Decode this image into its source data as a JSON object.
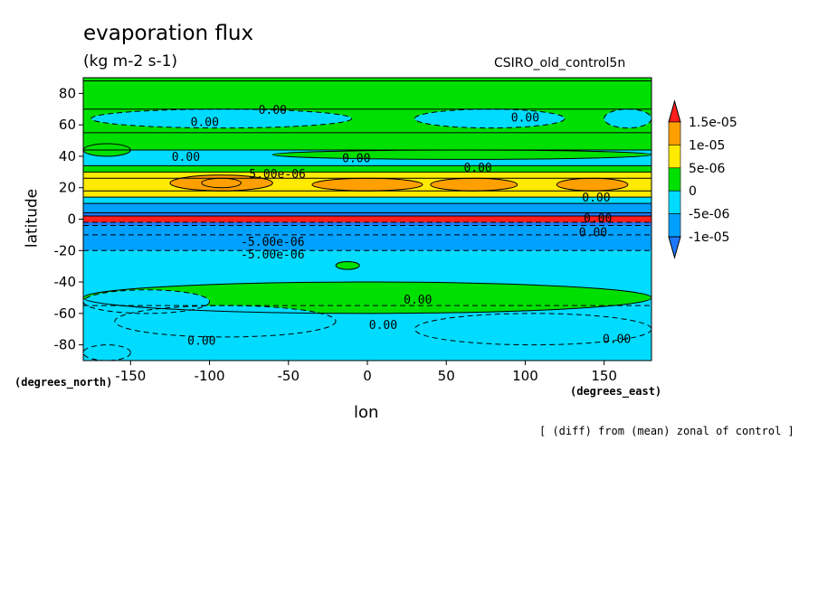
{
  "chart_data": {
    "type": "heatmap",
    "title": "evaporation flux",
    "units": "(kg m-2 s-1)",
    "run_name": "CSIRO_old_control5n",
    "xlabel": "lon",
    "ylabel": "latitude",
    "x_units": "(degrees_east)",
    "y_units": "(degrees_north)",
    "footnote": "[ (diff) from (mean) zonal of control ]",
    "xlim": [
      -180,
      180
    ],
    "ylim": [
      -90,
      90
    ],
    "x_ticks": [
      -150,
      -100,
      -50,
      0,
      50,
      100,
      150
    ],
    "y_ticks": [
      80,
      60,
      40,
      20,
      0,
      -20,
      -40,
      -60,
      -80
    ],
    "x_tick_labels": [
      "-150",
      "-100",
      "-50",
      "0",
      "50",
      "100",
      "150"
    ],
    "y_tick_labels": [
      "80",
      "60",
      "40",
      "20",
      "0",
      "-20",
      "-40",
      "-60",
      "-80"
    ],
    "colorbar": {
      "levels": [
        -1e-05,
        -5e-06,
        0,
        5e-06,
        1e-05,
        1.5e-05
      ],
      "tick_labels": [
        "-1e-05",
        "-5e-06",
        "0",
        "5e-06",
        "1e-05",
        "1.5e-05"
      ],
      "colors": [
        "#1e78ff",
        "#00a0ff",
        "#00dcff",
        "#00e000",
        "#ffea00",
        "#ffa000",
        "#ff1e1e"
      ]
    },
    "zonal_bands": [
      {
        "lat": [
          88,
          90
        ],
        "value": 2e-06
      },
      {
        "lat": [
          70,
          88
        ],
        "value": 2e-06
      },
      {
        "lat": [
          55,
          70
        ],
        "value": 2e-06
      },
      {
        "lat": [
          44,
          55
        ],
        "value": 2e-06
      },
      {
        "lat": [
          34,
          44
        ],
        "value": -2e-06
      },
      {
        "lat": [
          30,
          34
        ],
        "value": 2e-06
      },
      {
        "lat": [
          26,
          30
        ],
        "value": 7e-06
      },
      {
        "lat": [
          18,
          26
        ],
        "value": 9e-06
      },
      {
        "lat": [
          14,
          18
        ],
        "value": 6e-06
      },
      {
        "lat": [
          10,
          14
        ],
        "value": -2e-06
      },
      {
        "lat": [
          4,
          10
        ],
        "value": -8e-06
      },
      {
        "lat": [
          2,
          4
        ],
        "value": -1.2e-05
      },
      {
        "lat": [
          -2,
          2
        ],
        "value": 1.6e-05
      },
      {
        "lat": [
          -4,
          -2
        ],
        "value": -1.2e-05
      },
      {
        "lat": [
          -10,
          -4
        ],
        "value": -8e-06
      },
      {
        "lat": [
          -20,
          -10
        ],
        "value": -7e-06
      },
      {
        "lat": [
          -55,
          -20
        ],
        "value": -2e-06
      },
      {
        "lat": [
          -90,
          -55
        ],
        "value": -2e-06
      }
    ],
    "anomalies": [
      {
        "lon": [
          -105,
          -80
        ],
        "lat": [
          20,
          26
        ],
        "value": 1.6e-05
      },
      {
        "lon": [
          -125,
          -60
        ],
        "lat": [
          18,
          28
        ],
        "value": 1.2e-05
      },
      {
        "lon": [
          40,
          95
        ],
        "lat": [
          18,
          26
        ],
        "value": 1.2e-05
      },
      {
        "lon": [
          120,
          165
        ],
        "lat": [
          18,
          26
        ],
        "value": 1.2e-05
      },
      {
        "lon": [
          -35,
          35
        ],
        "lat": [
          18,
          26
        ],
        "value": 1.2e-05
      },
      {
        "lon": [
          -180,
          180
        ],
        "lat": [
          -60,
          -40
        ],
        "value": 2e-06
      },
      {
        "lon": [
          -160,
          -20
        ],
        "lat": [
          -75,
          -55
        ],
        "value": -2e-06
      },
      {
        "lon": [
          -180,
          -100
        ],
        "lat": [
          -60,
          -45
        ],
        "value": -2e-06
      },
      {
        "lon": [
          30,
          180
        ],
        "lat": [
          -80,
          -60
        ],
        "value": -2e-06
      },
      {
        "lon": [
          -180,
          -150
        ],
        "lat": [
          -90,
          -80
        ],
        "value": -2e-06
      },
      {
        "lon": [
          -180,
          -150
        ],
        "lat": [
          40,
          48
        ],
        "value": 2e-06
      },
      {
        "lon": [
          -60,
          180
        ],
        "lat": [
          38,
          44
        ],
        "value": 2e-06
      },
      {
        "lon": [
          -175,
          -10
        ],
        "lat": [
          58,
          70
        ],
        "value": -2e-06
      },
      {
        "lon": [
          30,
          125
        ],
        "lat": [
          58,
          70
        ],
        "value": -2e-06
      },
      {
        "lon": [
          150,
          180
        ],
        "lat": [
          58,
          70
        ],
        "value": -2e-06
      },
      {
        "lon": [
          -20,
          -5
        ],
        "lat": [
          -32,
          -27
        ],
        "value": 2e-06
      }
    ],
    "contour_labels": [
      {
        "text": "0.00",
        "lon": -60,
        "lat": 70
      },
      {
        "text": "0.00",
        "lon": -103,
        "lat": 62
      },
      {
        "text": "0.00",
        "lon": 100,
        "lat": 65
      },
      {
        "text": "0.00",
        "lon": -115,
        "lat": 40
      },
      {
        "text": "0.00",
        "lon": -7,
        "lat": 39
      },
      {
        "text": "0.00",
        "lon": 70,
        "lat": 33
      },
      {
        "text": "0.00",
        "lon": 145,
        "lat": 14
      },
      {
        "text": "0.00",
        "lon": 146,
        "lat": 1
      },
      {
        "text": "0.00",
        "lon": 143,
        "lat": -8
      },
      {
        "text": "0.00",
        "lon": 32,
        "lat": -51
      },
      {
        "text": "0.00",
        "lon": 10,
        "lat": -67
      },
      {
        "text": "0.00",
        "lon": -105,
        "lat": -77
      },
      {
        "text": "0.00",
        "lon": 158,
        "lat": -76
      },
      {
        "text": "5.00e-06",
        "lon": -57,
        "lat": 29
      },
      {
        "text": "-5.00e-06",
        "lon": -60,
        "lat": -14
      },
      {
        "text": "-5.00e-06",
        "lon": -60,
        "lat": -22
      }
    ]
  }
}
